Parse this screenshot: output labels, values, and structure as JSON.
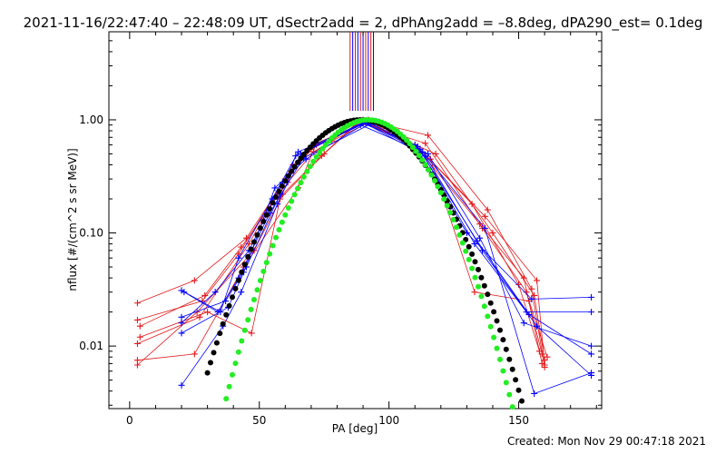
{
  "title": "2021-11-16/22:47:40 – 22:48:09 UT, dSectr2add = 2, dPhAng2add = –8.8deg, dPA290_est=  0.1deg",
  "created": "Created: Mon Nov 29 00:47:18 2021",
  "colors": {
    "red": "#e31a1c",
    "blue": "#0000ff",
    "black": "#000000",
    "green": "#22ee22",
    "axis": "#000000"
  },
  "chart_data": {
    "type": "scatter",
    "title": "2021-11-16/22:47:40 – 22:48:09 UT, dSectr2add = 2, dPhAng2add = –8.8deg, dPA290_est=  0.1deg",
    "xlabel": "PA [deg]",
    "ylabel": "nflux [#/(cm^2 s sr MeV)]",
    "xlim": [
      -8,
      182
    ],
    "ylim": [
      0.0028,
      6
    ],
    "yscale": "log",
    "xticks": [
      0,
      50,
      100,
      150
    ],
    "yticks": [
      0.01,
      0.1,
      1.0
    ],
    "ytick_labels": [
      "0.01",
      "0.10",
      "1.00"
    ],
    "markers_x": [
      85,
      86,
      87,
      88,
      89,
      90,
      91,
      92,
      93,
      94
    ],
    "markers_colors": [
      "red",
      "blue",
      "red",
      "blue",
      "red",
      "blue",
      "red",
      "blue",
      "red",
      "blue"
    ],
    "markers_ylim": [
      1.2,
      6
    ],
    "series": [
      {
        "color": "red",
        "x": [
          3,
          25,
          45,
          62,
          72,
          90,
          115,
          138,
          155,
          160
        ],
        "y": [
          0.024,
          0.038,
          0.09,
          0.35,
          0.6,
          1.0,
          0.73,
          0.16,
          0.032,
          0.0065
        ]
      },
      {
        "color": "red",
        "x": [
          3,
          28,
          42,
          60,
          70,
          92,
          110,
          135,
          152,
          159
        ],
        "y": [
          0.017,
          0.025,
          0.065,
          0.3,
          0.55,
          1.0,
          0.6,
          0.12,
          0.04,
          0.007
        ]
      },
      {
        "color": "red",
        "x": [
          4,
          30,
          47,
          58,
          75,
          89,
          118,
          140,
          156,
          160
        ],
        "y": [
          0.012,
          0.02,
          0.013,
          0.2,
          0.5,
          0.98,
          0.5,
          0.1,
          0.028,
          0.0075
        ]
      },
      {
        "color": "red",
        "x": [
          3,
          25,
          44,
          65,
          72,
          91,
          112,
          132,
          150,
          158
        ],
        "y": [
          0.0075,
          0.0085,
          0.05,
          0.25,
          0.62,
          0.95,
          0.55,
          0.18,
          0.035,
          0.009
        ]
      },
      {
        "color": "red",
        "x": [
          3,
          27,
          46,
          63,
          78,
          93,
          116,
          133,
          154,
          161
        ],
        "y": [
          0.0105,
          0.018,
          0.08,
          0.4,
          0.65,
          0.97,
          0.45,
          0.03,
          0.025,
          0.008
        ]
      },
      {
        "color": "red",
        "x": [
          4,
          29,
          43,
          61,
          71,
          90,
          111,
          137,
          157,
          160
        ],
        "y": [
          0.015,
          0.028,
          0.075,
          0.28,
          0.52,
          0.99,
          0.58,
          0.14,
          0.038,
          0.0068
        ]
      },
      {
        "color": "red",
        "x": [
          3,
          26,
          48,
          59,
          74,
          88,
          114,
          136,
          153,
          159
        ],
        "y": [
          0.0068,
          0.02,
          0.07,
          0.22,
          0.48,
          0.96,
          0.62,
          0.11,
          0.03,
          0.0085
        ]
      },
      {
        "color": "blue",
        "x": [
          20,
          35,
          42,
          55,
          65,
          90,
          110,
          130,
          155,
          178
        ],
        "y": [
          0.031,
          0.02,
          0.06,
          0.2,
          0.52,
          0.93,
          0.6,
          0.1,
          0.026,
          0.027
        ]
      },
      {
        "color": "blue",
        "x": [
          20,
          38,
          44,
          56,
          68,
          92,
          112,
          133,
          153,
          178
        ],
        "y": [
          0.013,
          0.022,
          0.045,
          0.25,
          0.45,
          0.96,
          0.55,
          0.08,
          0.02,
          0.02
        ]
      },
      {
        "color": "blue",
        "x": [
          20,
          36,
          43,
          57,
          66,
          89,
          115,
          135,
          152,
          178
        ],
        "y": [
          0.0045,
          0.015,
          0.03,
          0.18,
          0.5,
          0.9,
          0.5,
          0.09,
          0.016,
          0.01
        ]
      },
      {
        "color": "blue",
        "x": [
          20,
          37,
          45,
          58,
          64,
          91,
          113,
          137,
          156,
          178
        ],
        "y": [
          0.018,
          0.025,
          0.05,
          0.22,
          0.48,
          0.94,
          0.52,
          0.11,
          0.0038,
          0.0058
        ]
      },
      {
        "color": "blue",
        "x": [
          21,
          34,
          42,
          54,
          67,
          93,
          111,
          134,
          154,
          178
        ],
        "y": [
          0.03,
          0.02,
          0.04,
          0.15,
          0.46,
          0.92,
          0.58,
          0.085,
          0.019,
          0.0085
        ]
      },
      {
        "color": "blue",
        "x": [
          20,
          33,
          46,
          59,
          69,
          90,
          114,
          136,
          157,
          178
        ],
        "y": [
          0.016,
          0.03,
          0.07,
          0.28,
          0.55,
          0.95,
          0.48,
          0.07,
          0.015,
          0.0055
        ]
      }
    ],
    "fits": [
      {
        "color": "black",
        "center": 89,
        "width": 26,
        "xrange": [
          30,
          159
        ]
      },
      {
        "color": "green",
        "center": 92,
        "width": 23,
        "xrange": [
          36,
          159
        ]
      }
    ]
  }
}
